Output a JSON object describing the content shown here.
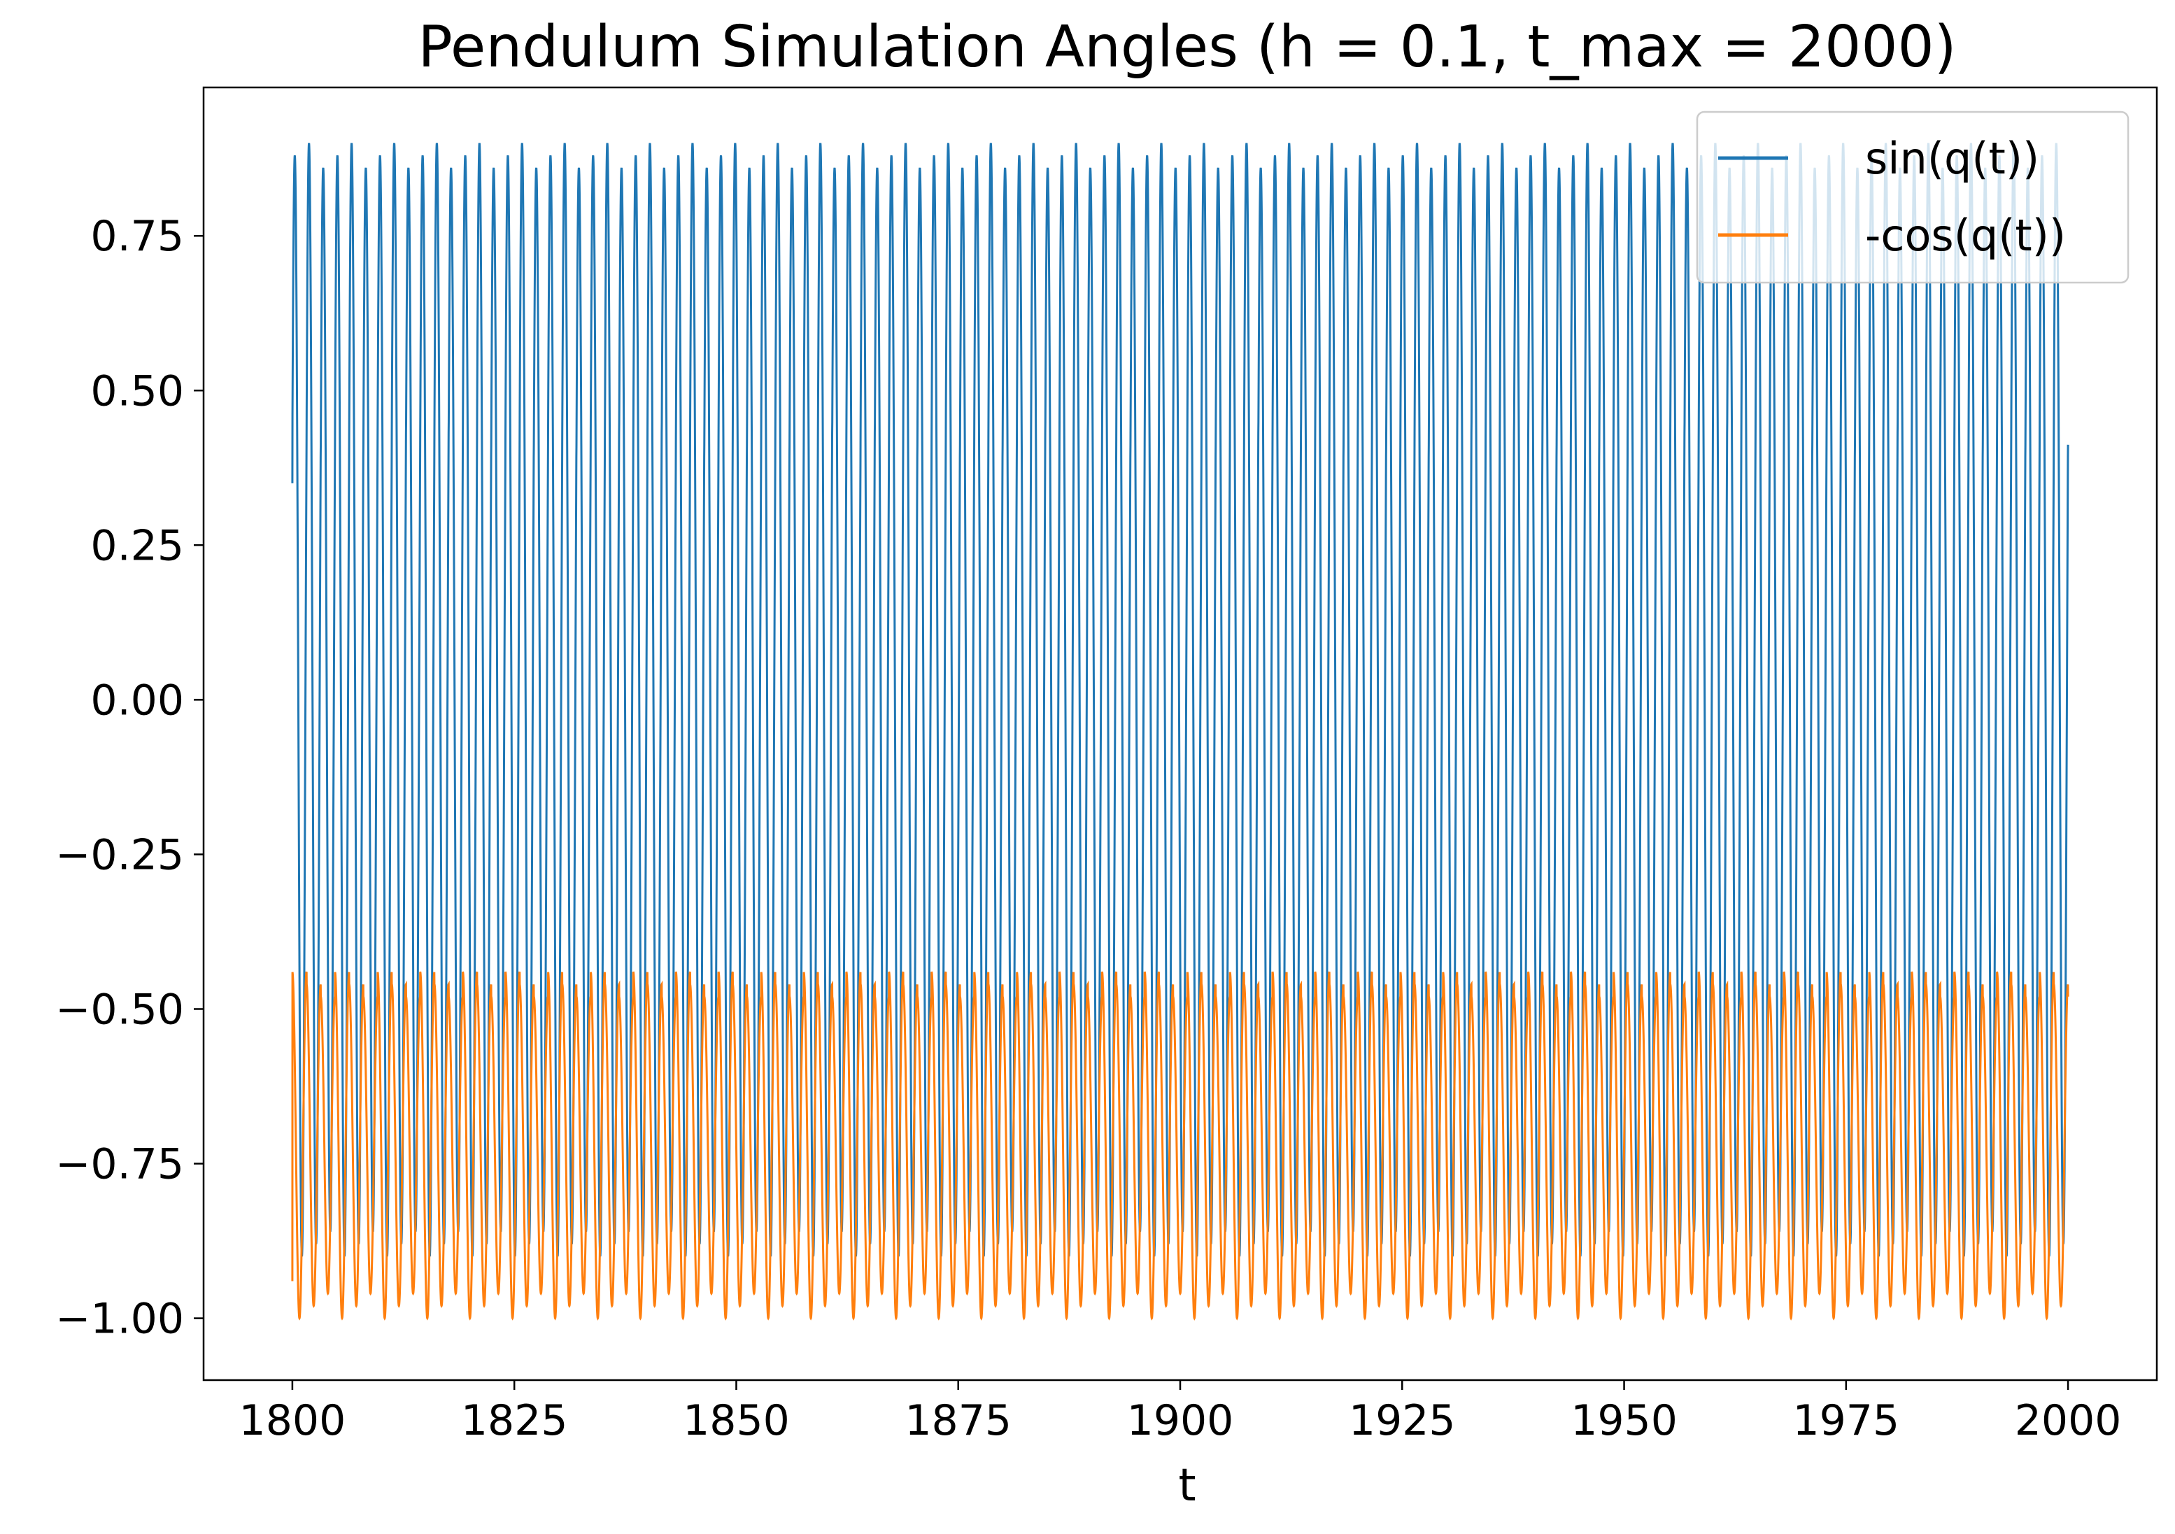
{
  "chart_data": {
    "type": "line",
    "title": "Pendulum Simulation Angles (h = 0.1, t_max = 2000)",
    "xlabel": "t",
    "ylabel": "",
    "xlim": [
      1790,
      2010
    ],
    "ylim": [
      -1.1,
      0.99
    ],
    "x_ticks": [
      1800,
      1825,
      1850,
      1875,
      1900,
      1925,
      1950,
      1975,
      2000
    ],
    "x_tick_labels": [
      "1800",
      "1825",
      "1850",
      "1875",
      "1900",
      "1925",
      "1950",
      "1975",
      "2000"
    ],
    "y_ticks": [
      0.75,
      0.5,
      0.25,
      0.0,
      -0.25,
      -0.5,
      -0.75,
      -1.0
    ],
    "y_tick_labels": [
      "0.75",
      "0.50",
      "0.25",
      "0.00",
      "−0.25",
      "−0.50",
      "−0.75",
      "−1.00"
    ],
    "x_range": [
      1800,
      2000
    ],
    "period_estimate": 1.6,
    "legend_position": "top-right",
    "grid": false,
    "series": [
      {
        "name": "sin(q(t))",
        "color": "#1f77b4",
        "start_value": 0.35,
        "max": 0.9,
        "min": -0.9,
        "peak_values": [
          0.88,
          0.9,
          0.86
        ],
        "trough_values": [
          -0.9,
          -0.88,
          -0.86
        ]
      },
      {
        "name": "-cos(q(t))",
        "color": "#ff7f0e",
        "start_value": -0.94,
        "max": -0.44,
        "min": -1.0,
        "peak_values": [
          -0.44,
          -0.46,
          -0.48
        ],
        "trough_values": [
          -1.0,
          -0.98,
          -0.96
        ]
      }
    ]
  }
}
